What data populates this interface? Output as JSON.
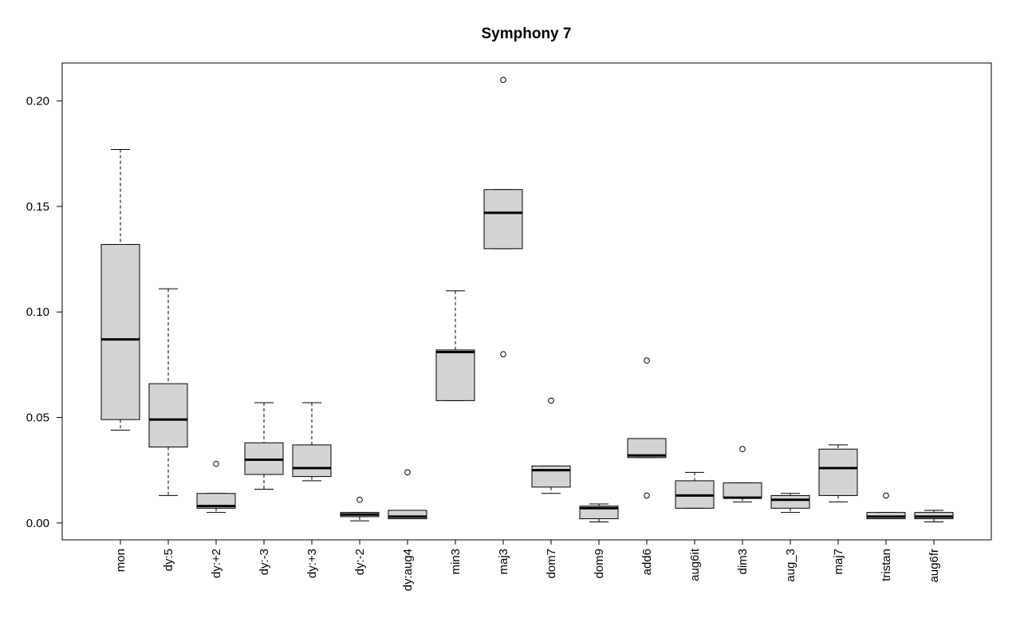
{
  "chart_data": {
    "type": "boxplot",
    "title": "Symphony 7",
    "xlabel": "",
    "ylabel": "",
    "ylim": [
      -0.008,
      0.218
    ],
    "yticks": [
      0.0,
      0.05,
      0.1,
      0.15,
      0.2
    ],
    "ytick_labels": [
      "0.00",
      "0.05",
      "0.10",
      "0.15",
      "0.20"
    ],
    "grid": false,
    "box_fill": "#d3d3d3",
    "categories": [
      "mon",
      "dy:5",
      "dy:+2",
      "dy:-3",
      "dy:+3",
      "dy:-2",
      "dy:aug4",
      "min3",
      "maj3",
      "dom7",
      "dom9",
      "add6",
      "aug6it",
      "dim3",
      "aug_3",
      "maj7",
      "tristan",
      "aug6fr"
    ],
    "boxes": [
      {
        "label": "mon",
        "whislo": 0.044,
        "q1": 0.049,
        "med": 0.087,
        "q3": 0.132,
        "whishi": 0.177,
        "fliers": []
      },
      {
        "label": "dy:5",
        "whislo": 0.013,
        "q1": 0.036,
        "med": 0.049,
        "q3": 0.066,
        "whishi": 0.111,
        "fliers": []
      },
      {
        "label": "dy:+2",
        "whislo": 0.005,
        "q1": 0.007,
        "med": 0.008,
        "q3": 0.014,
        "whishi": 0.014,
        "fliers": [
          0.028
        ]
      },
      {
        "label": "dy:-3",
        "whislo": 0.016,
        "q1": 0.023,
        "med": 0.03,
        "q3": 0.038,
        "whishi": 0.057,
        "fliers": []
      },
      {
        "label": "dy:+3",
        "whislo": 0.02,
        "q1": 0.022,
        "med": 0.026,
        "q3": 0.037,
        "whishi": 0.057,
        "fliers": []
      },
      {
        "label": "dy:-2",
        "whislo": 0.001,
        "q1": 0.003,
        "med": 0.004,
        "q3": 0.005,
        "whishi": 0.005,
        "fliers": [
          0.011
        ]
      },
      {
        "label": "dy:aug4",
        "whislo": 0.002,
        "q1": 0.002,
        "med": 0.003,
        "q3": 0.006,
        "whishi": 0.006,
        "fliers": [
          0.024
        ]
      },
      {
        "label": "min3",
        "whislo": 0.058,
        "q1": 0.058,
        "med": 0.081,
        "q3": 0.082,
        "whishi": 0.11,
        "fliers": []
      },
      {
        "label": "maj3",
        "whislo": 0.13,
        "q1": 0.13,
        "med": 0.147,
        "q3": 0.158,
        "whishi": 0.158,
        "fliers": [
          0.21,
          0.08
        ]
      },
      {
        "label": "dom7",
        "whislo": 0.014,
        "q1": 0.017,
        "med": 0.025,
        "q3": 0.027,
        "whishi": 0.027,
        "fliers": [
          0.058
        ]
      },
      {
        "label": "dom9",
        "whislo": 0.0005,
        "q1": 0.002,
        "med": 0.007,
        "q3": 0.008,
        "whishi": 0.009,
        "fliers": []
      },
      {
        "label": "add6",
        "whislo": 0.031,
        "q1": 0.031,
        "med": 0.032,
        "q3": 0.04,
        "whishi": 0.04,
        "fliers": [
          0.077,
          0.013
        ]
      },
      {
        "label": "aug6it",
        "whislo": 0.007,
        "q1": 0.007,
        "med": 0.013,
        "q3": 0.02,
        "whishi": 0.024,
        "fliers": []
      },
      {
        "label": "dim3",
        "whislo": 0.01,
        "q1": 0.012,
        "med": 0.012,
        "q3": 0.019,
        "whishi": 0.019,
        "fliers": [
          0.035
        ]
      },
      {
        "label": "aug_3",
        "whislo": 0.005,
        "q1": 0.007,
        "med": 0.011,
        "q3": 0.013,
        "whishi": 0.014,
        "fliers": []
      },
      {
        "label": "maj7",
        "whislo": 0.01,
        "q1": 0.013,
        "med": 0.026,
        "q3": 0.035,
        "whishi": 0.037,
        "fliers": []
      },
      {
        "label": "tristan",
        "whislo": 0.002,
        "q1": 0.002,
        "med": 0.003,
        "q3": 0.005,
        "whishi": 0.005,
        "fliers": [
          0.013
        ]
      },
      {
        "label": "aug6fr",
        "whislo": 0.0005,
        "q1": 0.002,
        "med": 0.003,
        "q3": 0.005,
        "whishi": 0.006,
        "fliers": []
      }
    ]
  }
}
